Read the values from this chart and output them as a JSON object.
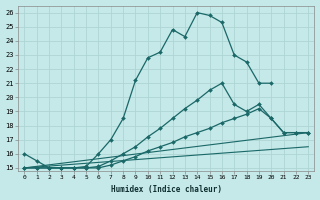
{
  "xlabel": "Humidex (Indice chaleur)",
  "background_color": "#c5e8e8",
  "grid_color": "#aed4d4",
  "line_color": "#1a6868",
  "xlim": [
    -0.5,
    23.5
  ],
  "ylim": [
    14.8,
    26.5
  ],
  "xticks": [
    0,
    1,
    2,
    3,
    4,
    5,
    6,
    7,
    8,
    9,
    10,
    11,
    12,
    13,
    14,
    15,
    16,
    17,
    18,
    19,
    20,
    21,
    22,
    23
  ],
  "yticks": [
    15,
    16,
    17,
    18,
    19,
    20,
    21,
    22,
    23,
    24,
    25,
    26
  ],
  "line1_x": [
    0,
    1,
    2,
    3,
    4,
    5,
    6,
    7,
    8,
    9,
    10,
    11,
    12,
    13,
    14,
    15,
    16,
    17,
    18,
    19,
    20
  ],
  "line1_y": [
    16.0,
    15.5,
    15.0,
    15.0,
    15.0,
    15.1,
    16.0,
    17.0,
    18.5,
    21.2,
    22.8,
    23.2,
    24.8,
    24.3,
    26.0,
    25.8,
    25.3,
    23.0,
    22.5,
    21.0,
    21.0
  ],
  "line2_x": [
    0,
    1,
    2,
    3,
    4,
    5,
    6,
    7,
    8,
    9,
    10,
    11,
    12,
    13,
    14,
    15,
    16,
    17,
    18,
    19,
    20,
    21,
    22,
    23
  ],
  "line2_y": [
    15.0,
    15.0,
    15.0,
    15.0,
    15.0,
    15.0,
    15.1,
    15.5,
    16.0,
    16.5,
    17.2,
    17.8,
    18.5,
    19.2,
    19.8,
    20.5,
    21.0,
    19.5,
    19.0,
    19.5,
    18.5,
    17.5,
    17.5,
    17.5
  ],
  "line3_x": [
    0,
    1,
    2,
    3,
    4,
    5,
    6,
    7,
    8,
    9,
    10,
    11,
    12,
    13,
    14,
    15,
    16,
    17,
    18,
    19,
    20,
    21,
    22,
    23
  ],
  "line3_y": [
    15.0,
    15.0,
    15.0,
    15.0,
    15.0,
    15.0,
    15.0,
    15.2,
    15.5,
    15.8,
    16.2,
    16.5,
    16.8,
    17.2,
    17.5,
    17.8,
    18.2,
    18.5,
    18.8,
    19.2,
    18.5,
    17.5,
    17.5,
    17.5
  ],
  "line4_x": [
    0,
    23
  ],
  "line4_y": [
    15.0,
    17.5
  ],
  "line5_x": [
    0,
    23
  ],
  "line5_y": [
    15.0,
    16.5
  ]
}
